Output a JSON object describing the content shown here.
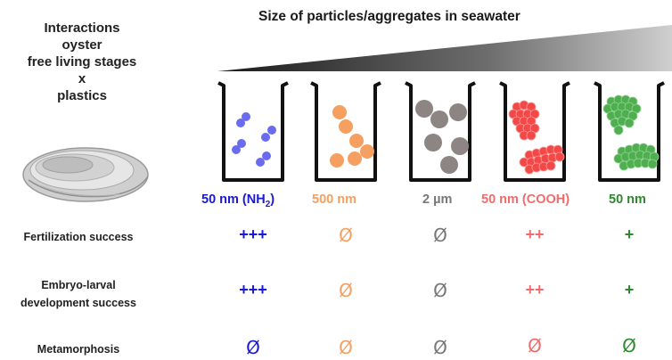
{
  "title_lines": [
    "Interactions",
    "oyster",
    "free living stages",
    "x",
    "plastics"
  ],
  "size_title": "Size of particles/aggregates in seawater",
  "beakers": [
    {
      "label_main": "50 nm (NH",
      "label_sub": "2",
      "label_tail": ")",
      "color": "#1a1ad6",
      "particle_color": "#6b6bf0"
    },
    {
      "label_main": "500 nm",
      "label_sub": "",
      "label_tail": "",
      "color": "#f5a061",
      "particle_color": "#f5a061"
    },
    {
      "label_main": "2 µm",
      "label_sub": "",
      "label_tail": "",
      "color": "#777777",
      "particle_color": "#8c8583"
    },
    {
      "label_main": "50 nm (COOH)",
      "label_sub": "",
      "label_tail": "",
      "color": "#f26b6b",
      "particle_color": "#f24848"
    },
    {
      "label_main": "50 nm",
      "label_sub": "",
      "label_tail": "",
      "color": "#2e8a2e",
      "particle_color": "#4fae4f"
    }
  ],
  "rows": [
    {
      "label_lines": [
        "Fertilization success"
      ],
      "values": [
        "+++",
        "Ø",
        "Ø",
        "++",
        "+"
      ]
    },
    {
      "label_lines": [
        "Embryo-larval",
        "development success"
      ],
      "values": [
        "+++",
        "Ø",
        "Ø",
        "++",
        "+"
      ]
    },
    {
      "label_lines": [
        "Metamorphosis"
      ],
      "values": [
        "Ø",
        "Ø",
        "Ø",
        "Ø",
        "Ø"
      ]
    }
  ]
}
